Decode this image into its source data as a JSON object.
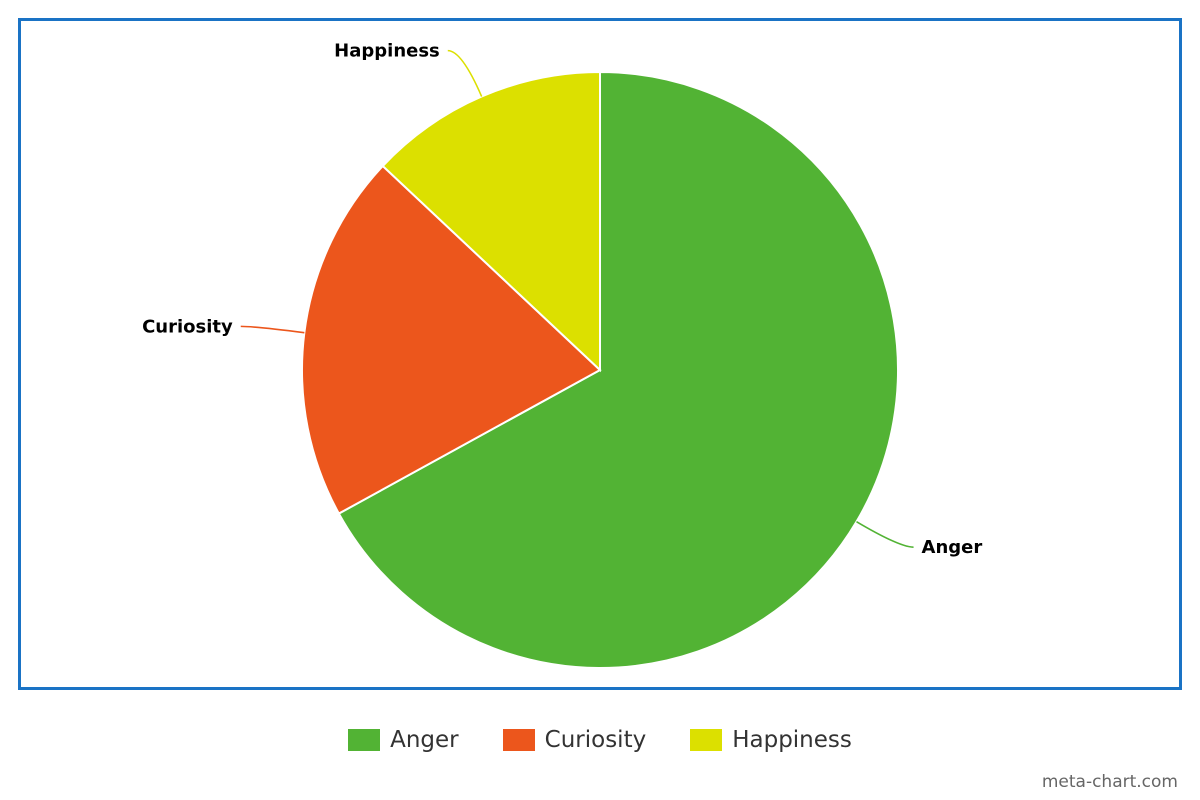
{
  "chart_data": {
    "type": "pie",
    "slices": [
      {
        "label": "Anger",
        "value": 67,
        "color": "#52b334"
      },
      {
        "label": "Curiosity",
        "value": 20,
        "color": "#ec561c"
      },
      {
        "label": "Happiness",
        "value": 13,
        "color": "#dce000"
      }
    ],
    "legend_position": "bottom"
  },
  "legend": {
    "items": [
      {
        "label": "Anger",
        "color": "#52b334"
      },
      {
        "label": "Curiosity",
        "color": "#ec561c"
      },
      {
        "label": "Happiness",
        "color": "#dce000"
      }
    ]
  },
  "colors": {
    "frame_border": "#1a73c5"
  },
  "watermark": "meta-chart.com"
}
